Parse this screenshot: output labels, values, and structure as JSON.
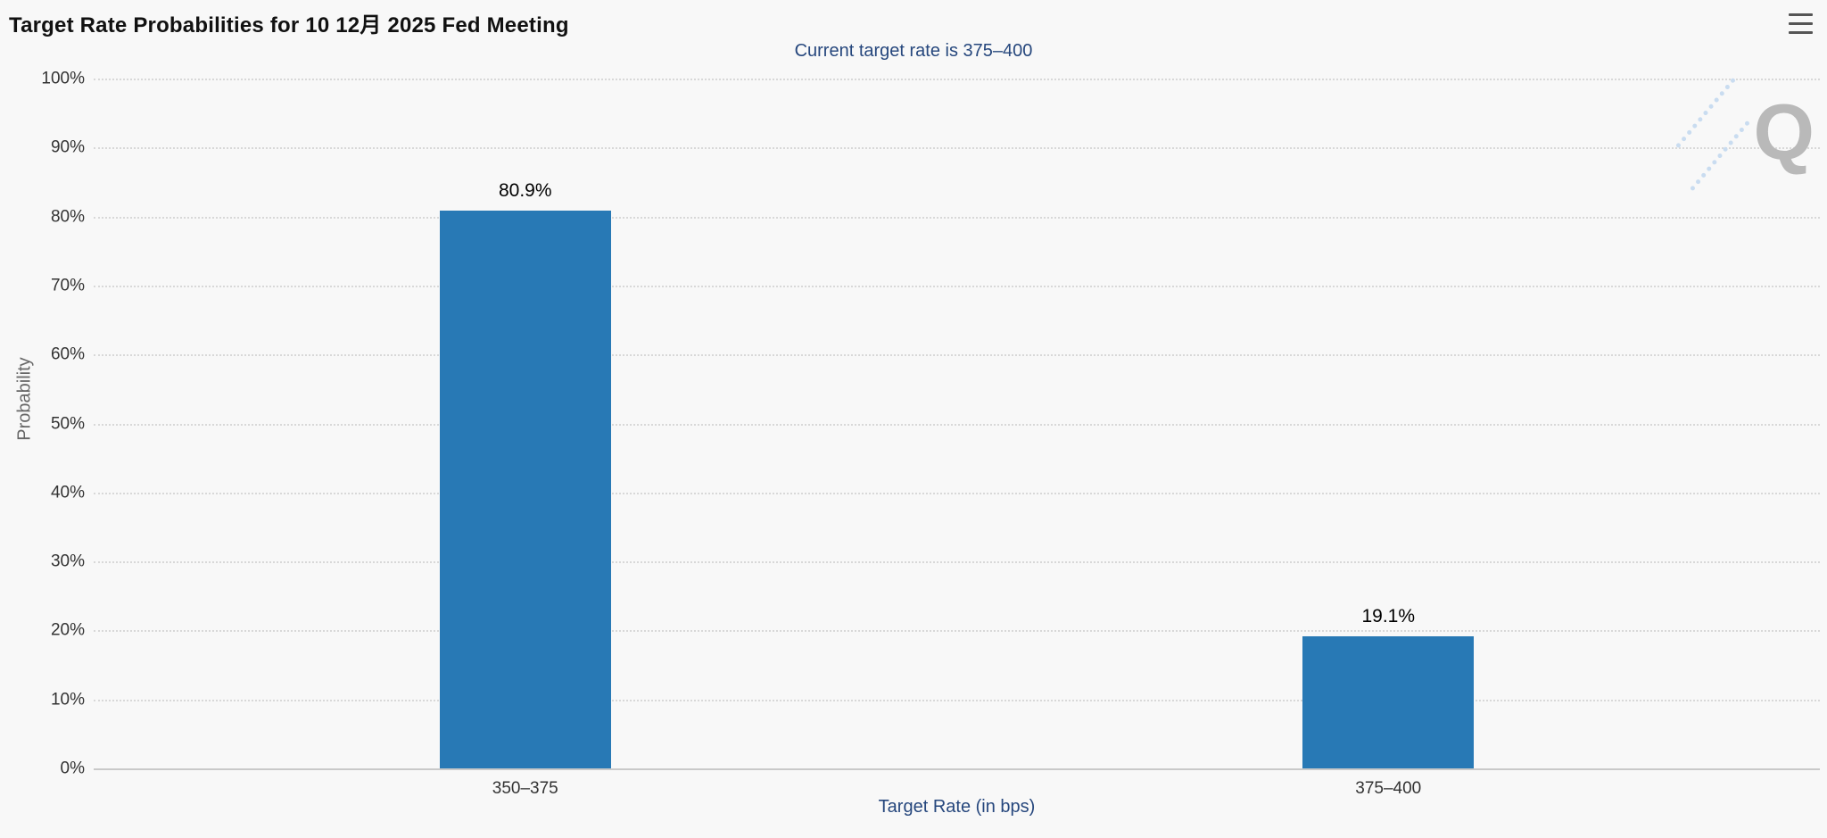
{
  "header": {
    "menu_icon": "hamburger-menu-icon"
  },
  "chart_data": {
    "type": "bar",
    "title": "Target Rate Probabilities for 10 12月 2025 Fed Meeting",
    "subtitle": "Current target rate is 375–400",
    "categories": [
      "350–375",
      "375–400"
    ],
    "values": [
      80.9,
      19.1
    ],
    "value_labels": [
      "80.9%",
      "19.1%"
    ],
    "xlabel": "Target Rate (in bps)",
    "ylabel": "Probability",
    "ylim": [
      0,
      100
    ],
    "ytick_step": 10,
    "ytick_suffix": "%",
    "ytick_labels": [
      "0%",
      "10%",
      "20%",
      "30%",
      "40%",
      "50%",
      "60%",
      "70%",
      "80%",
      "90%",
      "100%"
    ],
    "grid": "horizontal-dotted",
    "legend": "none",
    "bar_color": "#2879b5",
    "background_color": "#f8f8f8",
    "subtitle_color": "#26477d",
    "watermark": "Q"
  }
}
